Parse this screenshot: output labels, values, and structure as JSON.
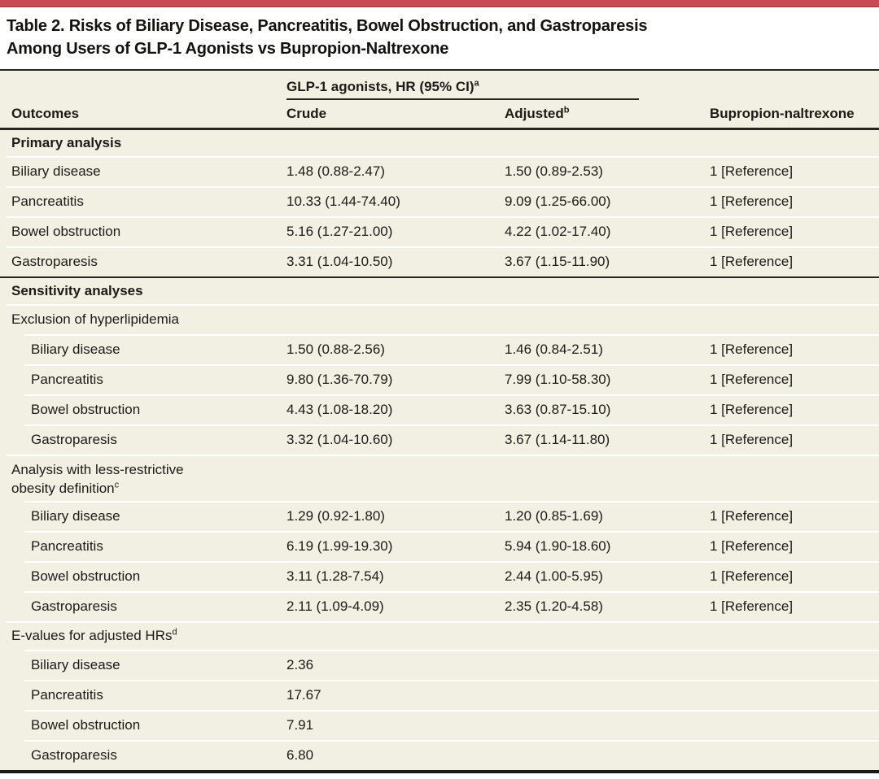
{
  "colors": {
    "accent_red": "#c84a54",
    "row_background": "#f2efe3",
    "rule_dark": "#26251f",
    "separator_white": "#ffffff"
  },
  "title": {
    "line1": "Table 2. Risks of Biliary Disease, Pancreatitis, Bowel Obstruction, and Gastroparesis",
    "line2": "Among Users of GLP-1 Agonists vs Bupropion-Naltrexone"
  },
  "header": {
    "spanner": "GLP-1 agonists, HR (95% CI)",
    "spanner_sup": "a",
    "outcomes": "Outcomes",
    "crude": "Crude",
    "adjusted": "Adjusted",
    "adjusted_sup": "b",
    "bupropion": "Bupropion-naltrexone"
  },
  "table": {
    "sections": [
      {
        "title": "Primary analysis",
        "rows": [
          {
            "outcome": "Biliary disease",
            "crude": "1.48 (0.88-2.47)",
            "adjusted": "1.50 (0.89-2.53)",
            "reference": "1 [Reference]"
          },
          {
            "outcome": "Pancreatitis",
            "crude": "10.33 (1.44-74.40)",
            "adjusted": "9.09 (1.25-66.00)",
            "reference": "1 [Reference]"
          },
          {
            "outcome": "Bowel obstruction",
            "crude": "5.16 (1.27-21.00)",
            "adjusted": "4.22 (1.02-17.40)",
            "reference": "1 [Reference]"
          },
          {
            "outcome": "Gastroparesis",
            "crude": "3.31 (1.04-10.50)",
            "adjusted": "3.67 (1.15-11.90)",
            "reference": "1 [Reference]"
          }
        ]
      },
      {
        "title": "Sensitivity analyses",
        "subsections": [
          {
            "title": "Exclusion of hyperlipidemia",
            "rows": [
              {
                "outcome": "Biliary disease",
                "crude": "1.50 (0.88-2.56)",
                "adjusted": "1.46 (0.84-2.51)",
                "reference": "1 [Reference]"
              },
              {
                "outcome": "Pancreatitis",
                "crude": "9.80 (1.36-70.79)",
                "adjusted": "7.99 (1.10-58.30)",
                "reference": "1 [Reference]"
              },
              {
                "outcome": "Bowel obstruction",
                "crude": "4.43 (1.08-18.20)",
                "adjusted": "3.63 (0.87-15.10)",
                "reference": "1 [Reference]"
              },
              {
                "outcome": "Gastroparesis",
                "crude": "3.32 (1.04-10.60)",
                "adjusted": "3.67 (1.14-11.80)",
                "reference": "1 [Reference]"
              }
            ]
          },
          {
            "title_line1": "Analysis with less-restrictive",
            "title_line2": "obesity definition",
            "title_sup": "c",
            "rows": [
              {
                "outcome": "Biliary disease",
                "crude": "1.29 (0.92-1.80)",
                "adjusted": "1.20 (0.85-1.69)",
                "reference": "1 [Reference]"
              },
              {
                "outcome": "Pancreatitis",
                "crude": "6.19 (1.99-19.30)",
                "adjusted": "5.94 (1.90-18.60)",
                "reference": "1 [Reference]"
              },
              {
                "outcome": "Bowel obstruction",
                "crude": "3.11 (1.28-7.54)",
                "adjusted": "2.44 (1.00-5.95)",
                "reference": "1 [Reference]"
              },
              {
                "outcome": "Gastroparesis",
                "crude": "2.11 (1.09-4.09)",
                "adjusted": "2.35 (1.20-4.58)",
                "reference": "1 [Reference]"
              }
            ]
          },
          {
            "title": "E-values for adjusted HRs",
            "title_sup": "d",
            "rows": [
              {
                "outcome": "Biliary disease",
                "crude": "2.36"
              },
              {
                "outcome": "Pancreatitis",
                "crude": "17.67"
              },
              {
                "outcome": "Bowel obstruction",
                "crude": "7.91"
              },
              {
                "outcome": "Gastroparesis",
                "crude": "6.80"
              }
            ]
          }
        ]
      }
    ]
  }
}
